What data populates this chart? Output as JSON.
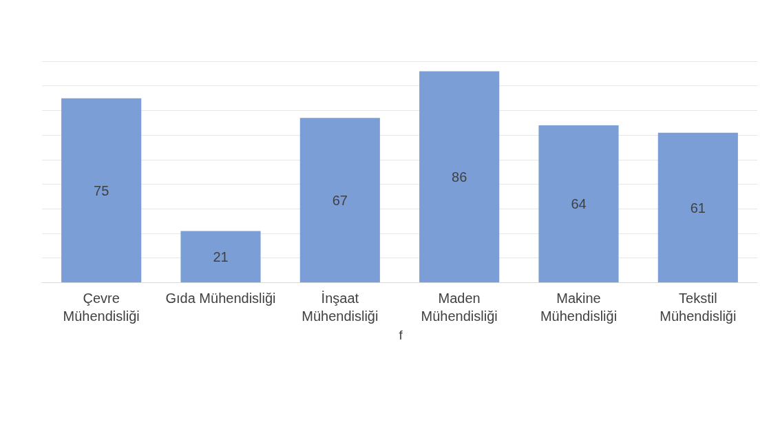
{
  "chart_data": {
    "type": "bar",
    "categories": [
      "Çevre\nMühendisliği",
      "Gıda Mühendisliği",
      "İnşaat\nMühendisliği",
      "Maden\nMühendisliği",
      "Makine\nMühendisliği",
      "Tekstil\nMühendisliği"
    ],
    "series": [
      {
        "name": "f",
        "color": "#7b9ed6",
        "values": [
          75,
          21,
          67,
          86,
          64,
          61
        ]
      }
    ],
    "tick_labels": "x",
    "grid": "y",
    "data_labels": true,
    "legend": "bottom"
  }
}
